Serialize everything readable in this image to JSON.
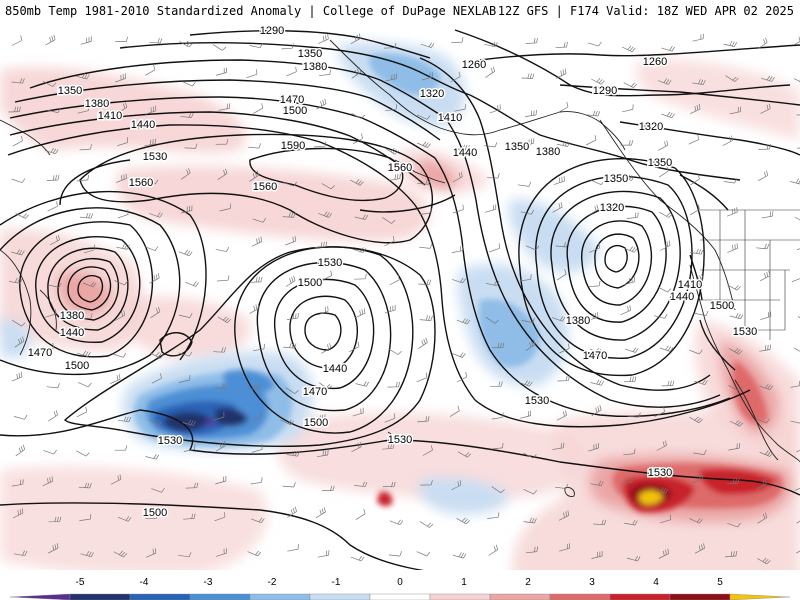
{
  "header": {
    "left_title": "850mb Temp 1981-2010 Standardized Anomaly | College of DuPage NEXLAB",
    "right_title": "12Z GFS | F174 Valid: 18Z WED APR 02 2025"
  },
  "colorbar": {
    "ticks": [
      "-5",
      "-4",
      "-3",
      "-2",
      "-1",
      "0",
      "1",
      "2",
      "3",
      "4",
      "5"
    ],
    "colors": [
      "#5a2d91",
      "#24336b",
      "#2a62b5",
      "#4d8fd6",
      "#8fbde8",
      "#c9ddf2",
      "#ffffff",
      "#f6d3d3",
      "#eba6a6",
      "#de6a6a",
      "#c8232b",
      "#8e0f1a",
      "#f2c40c"
    ]
  },
  "contours": {
    "labels": [
      {
        "text": "1290"
      },
      {
        "text": "1350"
      },
      {
        "text": "1380"
      },
      {
        "text": "1260"
      },
      {
        "text": "1260"
      },
      {
        "text": "1290"
      },
      {
        "text": "1350"
      },
      {
        "text": "1380"
      },
      {
        "text": "1410"
      },
      {
        "text": "1440"
      },
      {
        "text": "1470"
      },
      {
        "text": "1500"
      },
      {
        "text": "1320"
      },
      {
        "text": "1410"
      },
      {
        "text": "1440"
      },
      {
        "text": "1350"
      },
      {
        "text": "1380"
      },
      {
        "text": "1320"
      },
      {
        "text": "1530"
      },
      {
        "text": "1590"
      },
      {
        "text": "1560"
      },
      {
        "text": "1560"
      },
      {
        "text": "1560"
      },
      {
        "text": "1350"
      },
      {
        "text": "1350"
      },
      {
        "text": "1320"
      },
      {
        "text": "1380"
      },
      {
        "text": "1440"
      },
      {
        "text": "1470"
      },
      {
        "text": "1500"
      },
      {
        "text": "1530"
      },
      {
        "text": "1500"
      },
      {
        "text": "1440"
      },
      {
        "text": "1470"
      },
      {
        "text": "1500"
      },
      {
        "text": "1530"
      },
      {
        "text": "1380"
      },
      {
        "text": "1470"
      },
      {
        "text": "1530"
      },
      {
        "text": "1410"
      },
      {
        "text": "1440"
      },
      {
        "text": "1500"
      },
      {
        "text": "1530"
      },
      {
        "text": "1530"
      },
      {
        "text": "1530"
      },
      {
        "text": "1500"
      },
      {
        "text": "1500"
      }
    ]
  }
}
